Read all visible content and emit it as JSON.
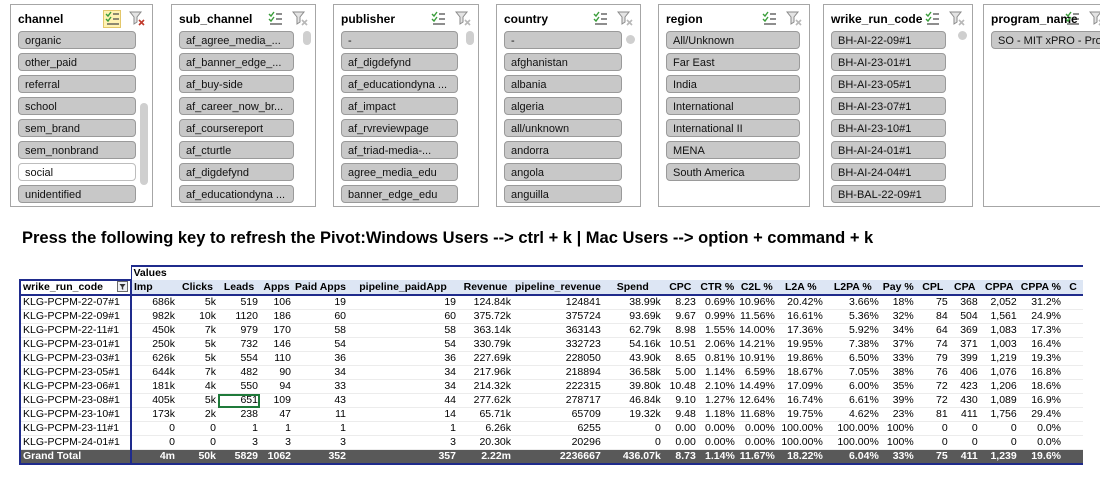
{
  "refresh_note": "Press the following key to refresh the Pivot:Windows Users --> ctrl + k | Mac Users --> option + command + k",
  "colors": {
    "slicer_item": "#c8c8c8",
    "pivot_header": "#dde6f4",
    "pivot_border": "#1f2b8c",
    "grand_total": "#595959",
    "multiselect_active": "#fff2b2"
  },
  "slicers": [
    {
      "title": "channel",
      "icons": [
        "multi-select-icon",
        "clear-filter-icon"
      ],
      "multiselect_active": true,
      "items": [
        {
          "label": "organic",
          "selected": false
        },
        {
          "label": "other_paid",
          "selected": false
        },
        {
          "label": "referral",
          "selected": false
        },
        {
          "label": "school",
          "selected": false
        },
        {
          "label": "sem_brand",
          "selected": false
        },
        {
          "label": "sem_nonbrand",
          "selected": false
        },
        {
          "label": "social",
          "selected": true
        },
        {
          "label": "unidentified",
          "selected": false
        }
      ]
    },
    {
      "title": "sub_channel",
      "icons": [
        "multi-select-icon",
        "clear-filter-icon"
      ],
      "items": [
        {
          "label": "af_agree_media_..."
        },
        {
          "label": "af_banner_edge_..."
        },
        {
          "label": "af_buy-side"
        },
        {
          "label": "af_career_now_br..."
        },
        {
          "label": "af_coursereport"
        },
        {
          "label": "af_cturtle"
        },
        {
          "label": "af_digdefynd"
        },
        {
          "label": "af_educationdyna ..."
        }
      ]
    },
    {
      "title": "publisher",
      "icons": [
        "multi-select-icon",
        "clear-filter-icon"
      ],
      "items": [
        {
          "label": "-"
        },
        {
          "label": "af_digdefynd"
        },
        {
          "label": "af_educationdyna ..."
        },
        {
          "label": "af_impact"
        },
        {
          "label": "af_rvreviewpage"
        },
        {
          "label": "af_triad-media-..."
        },
        {
          "label": "agree_media_edu"
        },
        {
          "label": "banner_edge_edu"
        }
      ]
    },
    {
      "title": "country",
      "icons": [
        "multi-select-icon",
        "clear-filter-icon"
      ],
      "items": [
        {
          "label": "-"
        },
        {
          "label": "afghanistan"
        },
        {
          "label": "albania"
        },
        {
          "label": "algeria"
        },
        {
          "label": "all/unknown"
        },
        {
          "label": "andorra"
        },
        {
          "label": "angola"
        },
        {
          "label": "anguilla"
        }
      ]
    },
    {
      "title": "region",
      "icons": [
        "multi-select-icon",
        "clear-filter-icon"
      ],
      "items": [
        {
          "label": "All/Unknown"
        },
        {
          "label": "Far East"
        },
        {
          "label": "India"
        },
        {
          "label": "International"
        },
        {
          "label": "International  II"
        },
        {
          "label": "MENA"
        },
        {
          "label": "South America"
        }
      ]
    },
    {
      "title": "wrike_run_code",
      "icons": [
        "multi-select-icon",
        "clear-filter-icon"
      ],
      "items": [
        {
          "label": "BH-AI-22-09#1"
        },
        {
          "label": "BH-AI-23-01#1"
        },
        {
          "label": "BH-AI-23-05#1"
        },
        {
          "label": "BH-AI-23-07#1"
        },
        {
          "label": "BH-AI-23-10#1"
        },
        {
          "label": "BH-AI-24-01#1"
        },
        {
          "label": "BH-AI-24-04#1"
        },
        {
          "label": "BH-BAL-22-09#1"
        }
      ]
    },
    {
      "title": "program_name",
      "icons": [
        "multi-select-icon",
        "clear-filter-icon"
      ],
      "items": [
        {
          "label": "SO - MIT xPRO - Prof"
        }
      ]
    }
  ],
  "pivot": {
    "values_label": "Values",
    "row_field": "wrike_run_code",
    "columns": [
      "Imp",
      "Clicks",
      "Leads",
      "Apps",
      "Paid Apps",
      "pipeline_paidApp",
      "Revenue",
      "pipeline_revenue",
      "Spend",
      "CPC",
      "CTR %",
      "C2L %",
      "L2A %",
      "L2PA %",
      "Pay %",
      "CPL",
      "CPA",
      "CPPA",
      "CPPA %",
      "C"
    ],
    "rows": [
      {
        "label": "KLG-PCPM-22-07#1",
        "values": [
          "686k",
          "5k",
          "519",
          "106",
          "19",
          "19",
          "124.84k",
          "124841",
          "38.99k",
          "8.23",
          "0.69%",
          "10.96%",
          "20.42%",
          "3.66%",
          "18%",
          "75",
          "368",
          "2,052",
          "31.2%",
          ""
        ]
      },
      {
        "label": "KLG-PCPM-22-09#1",
        "values": [
          "982k",
          "10k",
          "1120",
          "186",
          "60",
          "60",
          "375.72k",
          "375724",
          "93.69k",
          "9.67",
          "0.99%",
          "11.56%",
          "16.61%",
          "5.36%",
          "32%",
          "84",
          "504",
          "1,561",
          "24.9%",
          ""
        ]
      },
      {
        "label": "KLG-PCPM-22-11#1",
        "values": [
          "450k",
          "7k",
          "979",
          "170",
          "58",
          "58",
          "363.14k",
          "363143",
          "62.79k",
          "8.98",
          "1.55%",
          "14.00%",
          "17.36%",
          "5.92%",
          "34%",
          "64",
          "369",
          "1,083",
          "17.3%",
          ""
        ]
      },
      {
        "label": "KLG-PCPM-23-01#1",
        "values": [
          "250k",
          "5k",
          "732",
          "146",
          "54",
          "54",
          "330.79k",
          "332723",
          "54.16k",
          "10.51",
          "2.06%",
          "14.21%",
          "19.95%",
          "7.38%",
          "37%",
          "74",
          "371",
          "1,003",
          "16.4%",
          ""
        ]
      },
      {
        "label": "KLG-PCPM-23-03#1",
        "values": [
          "626k",
          "5k",
          "554",
          "110",
          "36",
          "36",
          "227.69k",
          "228050",
          "43.90k",
          "8.65",
          "0.81%",
          "10.91%",
          "19.86%",
          "6.50%",
          "33%",
          "79",
          "399",
          "1,219",
          "19.3%",
          ""
        ]
      },
      {
        "label": "KLG-PCPM-23-05#1",
        "values": [
          "644k",
          "7k",
          "482",
          "90",
          "34",
          "34",
          "217.96k",
          "218894",
          "36.58k",
          "5.00",
          "1.14%",
          "6.59%",
          "18.67%",
          "7.05%",
          "38%",
          "76",
          "406",
          "1,076",
          "16.8%",
          ""
        ]
      },
      {
        "label": "KLG-PCPM-23-06#1",
        "values": [
          "181k",
          "4k",
          "550",
          "94",
          "33",
          "34",
          "214.32k",
          "222315",
          "39.80k",
          "10.48",
          "2.10%",
          "14.49%",
          "17.09%",
          "6.00%",
          "35%",
          "72",
          "423",
          "1,206",
          "18.6%",
          ""
        ]
      },
      {
        "label": "KLG-PCPM-23-08#1",
        "values": [
          "405k",
          "5k",
          "651",
          "109",
          "43",
          "44",
          "277.62k",
          "278717",
          "46.84k",
          "9.10",
          "1.27%",
          "12.64%",
          "16.74%",
          "6.61%",
          "39%",
          "72",
          "430",
          "1,089",
          "16.9%",
          ""
        ]
      },
      {
        "label": "KLG-PCPM-23-10#1",
        "values": [
          "173k",
          "2k",
          "238",
          "47",
          "11",
          "14",
          "65.71k",
          "65709",
          "19.32k",
          "9.48",
          "1.18%",
          "11.68%",
          "19.75%",
          "4.62%",
          "23%",
          "81",
          "411",
          "1,756",
          "29.4%",
          ""
        ]
      },
      {
        "label": "KLG-PCPM-23-11#1",
        "values": [
          "0",
          "0",
          "1",
          "1",
          "1",
          "1",
          "6.26k",
          "6255",
          "0",
          "0.00",
          "0.00%",
          "0.00%",
          "100.00%",
          "100.00%",
          "100%",
          "0",
          "0",
          "0",
          "0.0%",
          ""
        ]
      },
      {
        "label": "KLG-PCPM-24-01#1",
        "values": [
          "0",
          "0",
          "3",
          "3",
          "3",
          "3",
          "20.30k",
          "20296",
          "0",
          "0.00",
          "0.00%",
          "0.00%",
          "100.00%",
          "100.00%",
          "100%",
          "0",
          "0",
          "0",
          "0.0%",
          ""
        ]
      }
    ],
    "grand_total": {
      "label": "Grand Total",
      "values": [
        "4m",
        "50k",
        "5829",
        "1062",
        "352",
        "357",
        "2.22m",
        "2236667",
        "436.07k",
        "8.73",
        "1.14%",
        "11.67%",
        "18.22%",
        "6.04%",
        "33%",
        "75",
        "411",
        "1,239",
        "19.6%",
        ""
      ]
    },
    "selected_cell": {
      "row": 7,
      "column": "Leads"
    }
  }
}
